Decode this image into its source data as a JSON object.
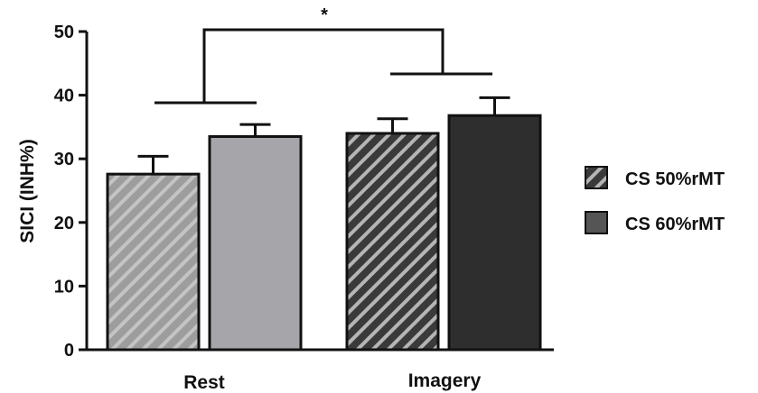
{
  "chart_data": {
    "type": "bar",
    "ylabel": "SICI (INH%)",
    "xlabel": "",
    "title": "",
    "ylim": [
      0,
      50
    ],
    "yticks": [
      0,
      10,
      20,
      30,
      40,
      50
    ],
    "categories": [
      "Rest",
      "Imagery"
    ],
    "series": [
      {
        "name": "CS 50%rMT",
        "values": [
          27.6,
          34.0
        ],
        "errors": [
          2.8,
          2.3
        ],
        "color": "#a3a3a3",
        "imagery_color": "#3a3a3a",
        "pattern": "diagonal-stripes"
      },
      {
        "name": "CS 60%rMT",
        "values": [
          33.5,
          36.8
        ],
        "errors": [
          1.9,
          2.8
        ],
        "color": "#a6a6aa",
        "imagery_color": "#2e2e2e",
        "pattern": "solid"
      }
    ],
    "annotations": [
      {
        "type": "significance",
        "label": "*",
        "between": [
          "Rest",
          "Imagery"
        ]
      }
    ],
    "legend_position": "right",
    "grid": false
  }
}
